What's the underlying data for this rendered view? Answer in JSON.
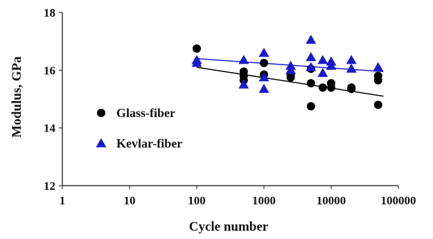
{
  "chart_data": {
    "type": "scatter",
    "title": "",
    "xlabel": "Cycle number",
    "ylabel": "Modulus, GPa",
    "xscale": "log",
    "xlim": [
      1,
      100000
    ],
    "ylim": [
      12,
      18
    ],
    "x_ticks": [
      "1",
      "10",
      "100",
      "1000",
      "10000",
      "100000"
    ],
    "y_ticks": [
      "12",
      "14",
      "16",
      "18"
    ],
    "grid": false,
    "legend_position": "left",
    "series": [
      {
        "name": "Glass-fiber",
        "marker": "circle",
        "color": "#000000",
        "points": [
          [
            100,
            16.75
          ],
          [
            500,
            15.95
          ],
          [
            500,
            15.8
          ],
          [
            500,
            15.65
          ],
          [
            1000,
            16.25
          ],
          [
            1000,
            15.85
          ],
          [
            2500,
            15.85
          ],
          [
            2500,
            15.75
          ],
          [
            5000,
            16.05
          ],
          [
            5000,
            15.55
          ],
          [
            5000,
            14.75
          ],
          [
            7500,
            15.4
          ],
          [
            10000,
            15.55
          ],
          [
            10000,
            15.4
          ],
          [
            20000,
            15.35
          ],
          [
            20000,
            15.4
          ],
          [
            50000,
            15.8
          ],
          [
            50000,
            15.65
          ],
          [
            50000,
            14.8
          ]
        ],
        "trend": [
          [
            100,
            16.1
          ],
          [
            60000,
            15.1
          ]
        ]
      },
      {
        "name": "Kevlar-fiber",
        "marker": "triangle",
        "color": "#1a1acc",
        "points": [
          [
            100,
            16.35
          ],
          [
            100,
            16.25
          ],
          [
            500,
            16.35
          ],
          [
            500,
            15.5
          ],
          [
            1000,
            16.6
          ],
          [
            1000,
            15.75
          ],
          [
            1000,
            15.35
          ],
          [
            2500,
            16.15
          ],
          [
            2500,
            16.0
          ],
          [
            5000,
            17.05
          ],
          [
            5000,
            16.45
          ],
          [
            5000,
            16.1
          ],
          [
            7500,
            16.35
          ],
          [
            7500,
            15.9
          ],
          [
            10000,
            16.3
          ],
          [
            10000,
            16.15
          ],
          [
            20000,
            16.35
          ],
          [
            20000,
            16.05
          ],
          [
            50000,
            16.1
          ]
        ],
        "trend": [
          [
            100,
            16.4
          ],
          [
            60000,
            15.95
          ]
        ]
      }
    ]
  }
}
